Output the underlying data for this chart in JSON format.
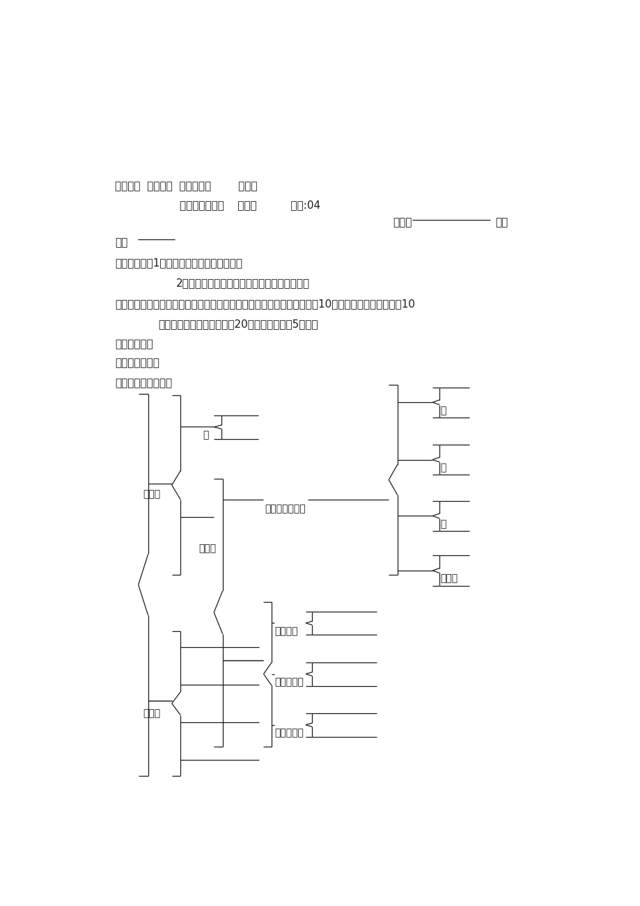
{
  "bg_color": "#ffffff",
  "text_color": "#1a1a1a",
  "header_line1": "编制人：  审核人：  包科领导：        时间：",
  "header_line2": "元素与物质分类    分散系          编号:04",
  "header_班级": "班级：",
  "header_组别": "组别",
  "name_label": "姓名",
  "s1": "【学习目的】1．理解溶解度、胶体等概念。",
  "s1b": "2．掌握酸、碱、盐、氧化物之间的互相关系。",
  "s2": "【使用阐明】运用一节课认真阅读课本完毕学案，下课收齐。下节课修改10分钟后结合错题记录讨论10",
  "s2b": "分钟，师生探究、学生展示20分钟，巩固贯彻5分钟。",
  "s3": "【基本自学】",
  "s4": "一、物质的分类",
  "s5": "完毕下列空白并举例",
  "label_纯净物": "纯净物",
  "label_单": "单",
  "label_化合物": "化合物",
  "label_按构成": "按构成和性质分",
  "label_酸": "酸",
  "label_碱": "碱",
  "label_盐": "盐",
  "label_氧化物": "氧化物",
  "label_按构造": "按构造分",
  "label_按电离": "按电离与否",
  "label_按含碳": "按含碳与否",
  "label_混合物": "混合物"
}
